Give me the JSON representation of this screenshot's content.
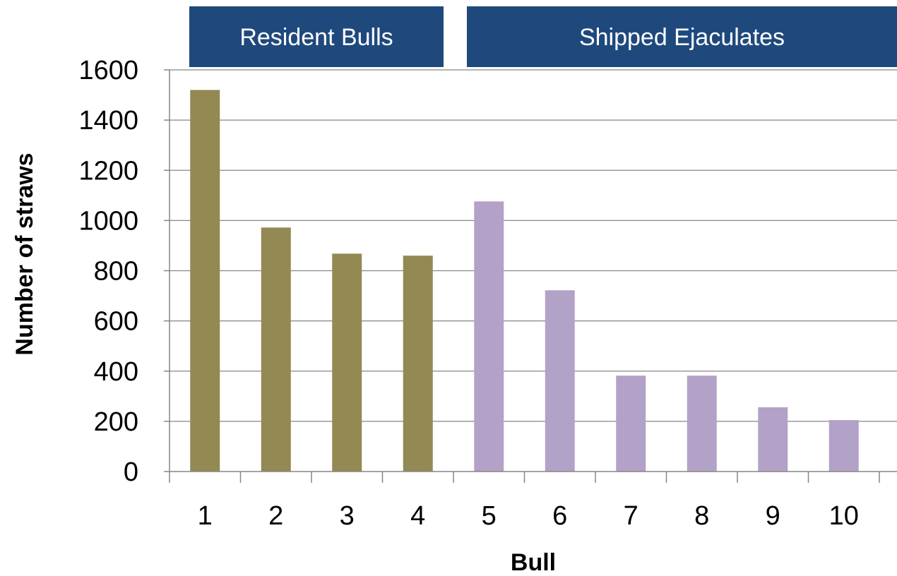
{
  "chart_data": {
    "type": "bar",
    "title": "",
    "xlabel": "Bull",
    "ylabel": "Number of straws",
    "ylim": [
      0,
      1600
    ],
    "yticks": [
      0,
      200,
      400,
      600,
      800,
      1000,
      1200,
      1400,
      1600
    ],
    "categories": [
      "1",
      "2",
      "3",
      "4",
      "5",
      "6",
      "7",
      "8",
      "9",
      "10"
    ],
    "values": [
      1520,
      972,
      868,
      860,
      1076,
      722,
      382,
      382,
      256,
      205
    ],
    "grid": true,
    "legend": "none",
    "groups": [
      {
        "label": "Resident Bulls",
        "categories": [
          "1",
          "2",
          "3",
          "4"
        ],
        "color": "#938953"
      },
      {
        "label": "Shipped Ejaculates",
        "categories": [
          "5",
          "6",
          "7",
          "8",
          "9",
          "10"
        ],
        "color": "#b3a2c7"
      }
    ],
    "header_color": "#1f497d"
  }
}
